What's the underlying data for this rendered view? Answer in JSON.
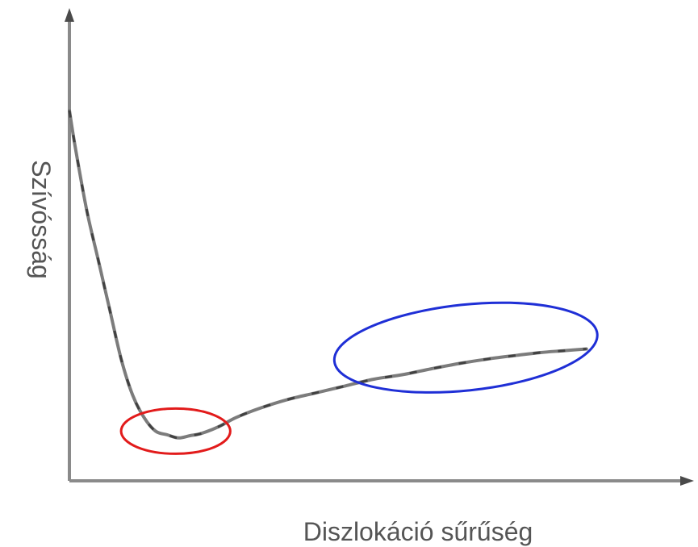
{
  "chart_data": {
    "type": "line",
    "title": "",
    "xlabel": "Diszlokáció sűrűség",
    "ylabel": "Szívósság",
    "xlim": [
      0,
      100
    ],
    "ylim": [
      0,
      100
    ],
    "grid": false,
    "legend": "none",
    "series": [
      {
        "x": [
          0,
          1,
          3,
          5,
          7,
          9,
          11,
          13,
          15,
          17,
          19,
          21,
          23,
          26,
          29,
          33,
          38,
          43,
          48,
          53,
          58,
          63,
          68,
          73,
          78,
          82,
          86,
          90
        ],
        "y": [
          82,
          74,
          60,
          49,
          38,
          27,
          19,
          14,
          11,
          10.2,
          9.5,
          10,
          10.5,
          12,
          14,
          16,
          18,
          19.5,
          21,
          22.5,
          23.5,
          24.8,
          26,
          27,
          27.8,
          28.4,
          28.8,
          29.2
        ],
        "color": "#7c7c7c"
      }
    ],
    "annotations": [
      {
        "shape": "ellipse",
        "color": "#e21b1b",
        "x_range": [
          9,
          28
        ],
        "y_range": [
          6,
          16
        ]
      },
      {
        "shape": "ellipse",
        "color": "#1f2fd6",
        "x_range": [
          46,
          92
        ],
        "y_range": [
          20,
          39
        ]
      }
    ]
  }
}
